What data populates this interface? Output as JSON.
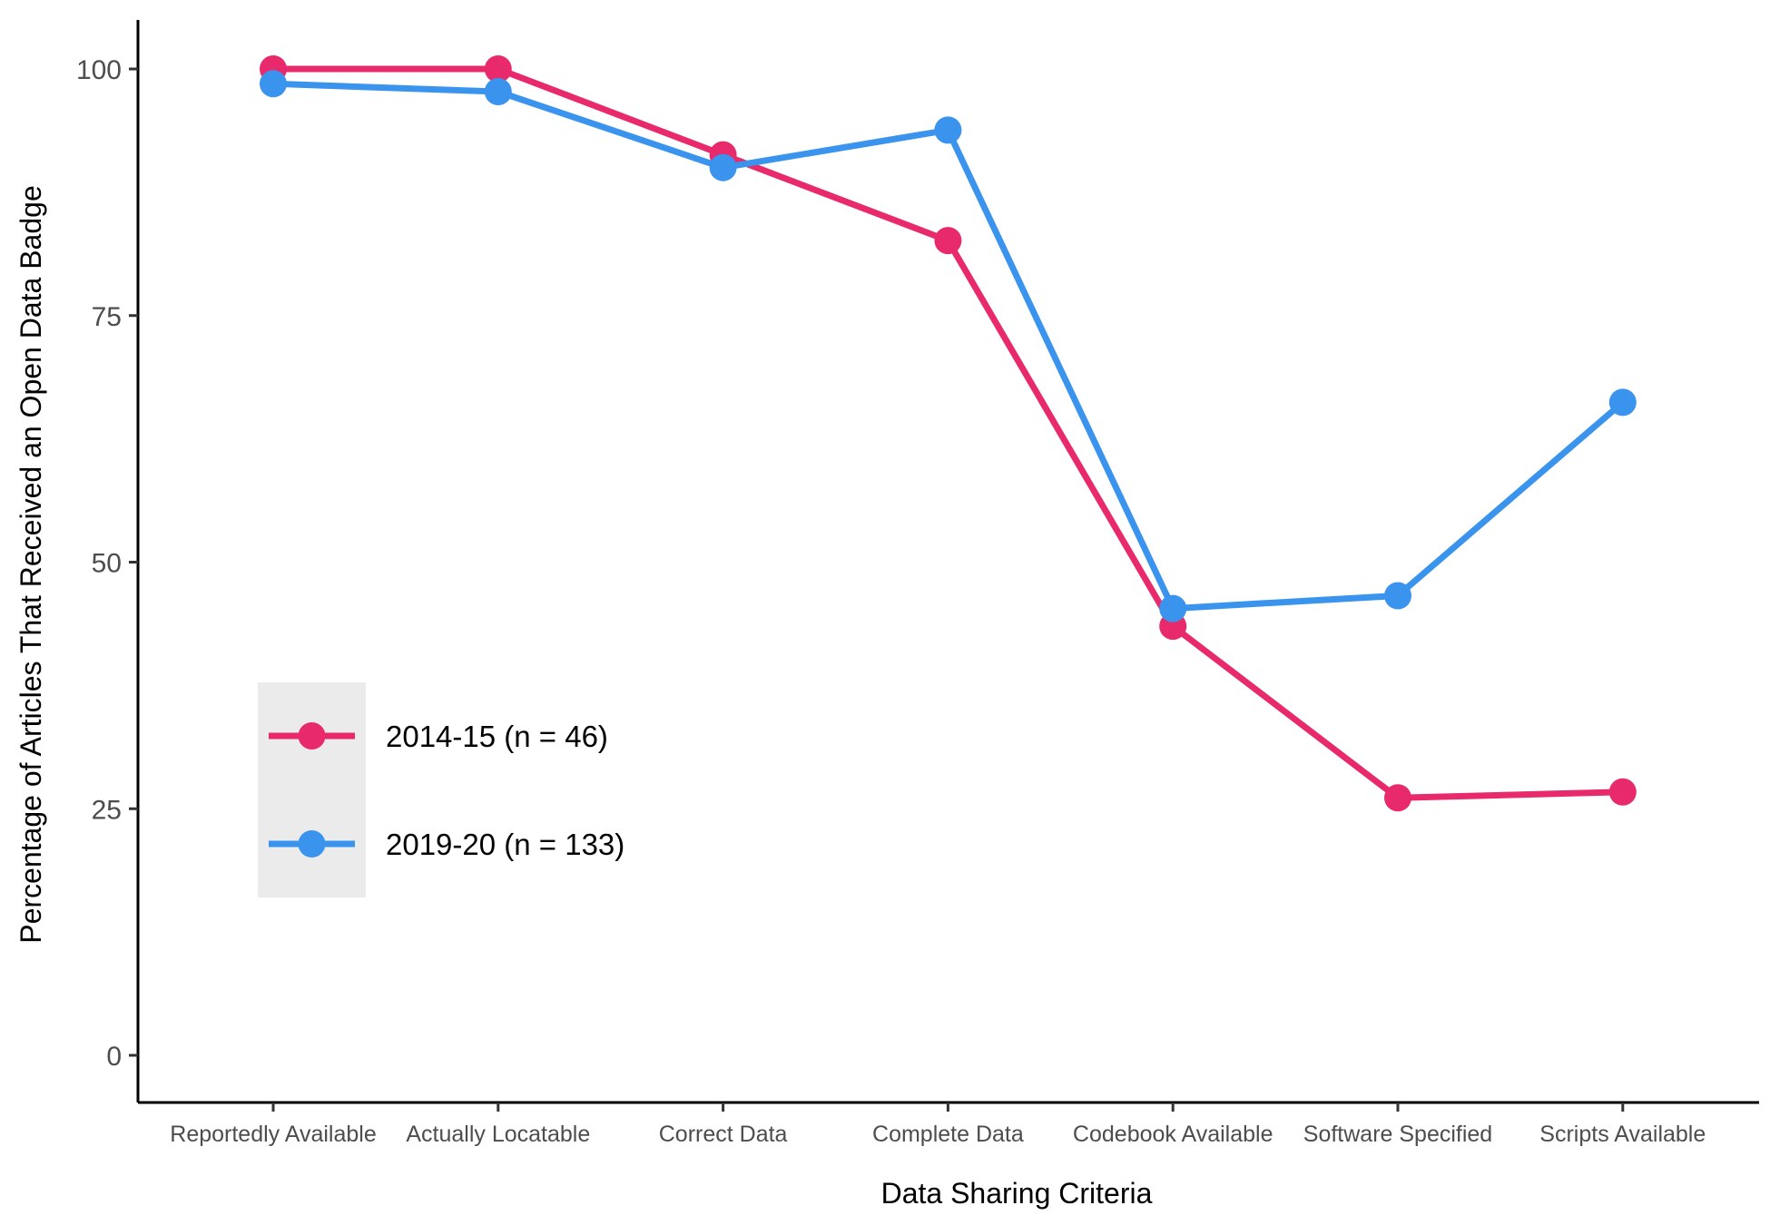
{
  "chart_data": {
    "type": "line",
    "title": "",
    "xlabel": "Data Sharing Criteria",
    "ylabel": "Percentage of Articles That Received an Open Data Badge",
    "categories": [
      "Reportedly Available",
      "Actually Locatable",
      "Correct Data",
      "Complete Data",
      "Codebook Available",
      "Software Specified",
      "Scripts Available"
    ],
    "ylim": [
      -5,
      105
    ],
    "yticks": [
      0,
      25,
      50,
      75,
      100
    ],
    "grid": false,
    "legend_position": "inside-left",
    "series": [
      {
        "name": "2014-15 (n = 46)",
        "color": "#E8296B",
        "values": [
          100,
          100,
          91.3,
          82.6,
          43.5,
          26.1,
          26.7
        ]
      },
      {
        "name": "2019-20 (n = 133)",
        "color": "#3A94EE",
        "values": [
          98.5,
          97.7,
          90.0,
          93.8,
          45.3,
          46.6,
          66.2
        ]
      }
    ]
  }
}
